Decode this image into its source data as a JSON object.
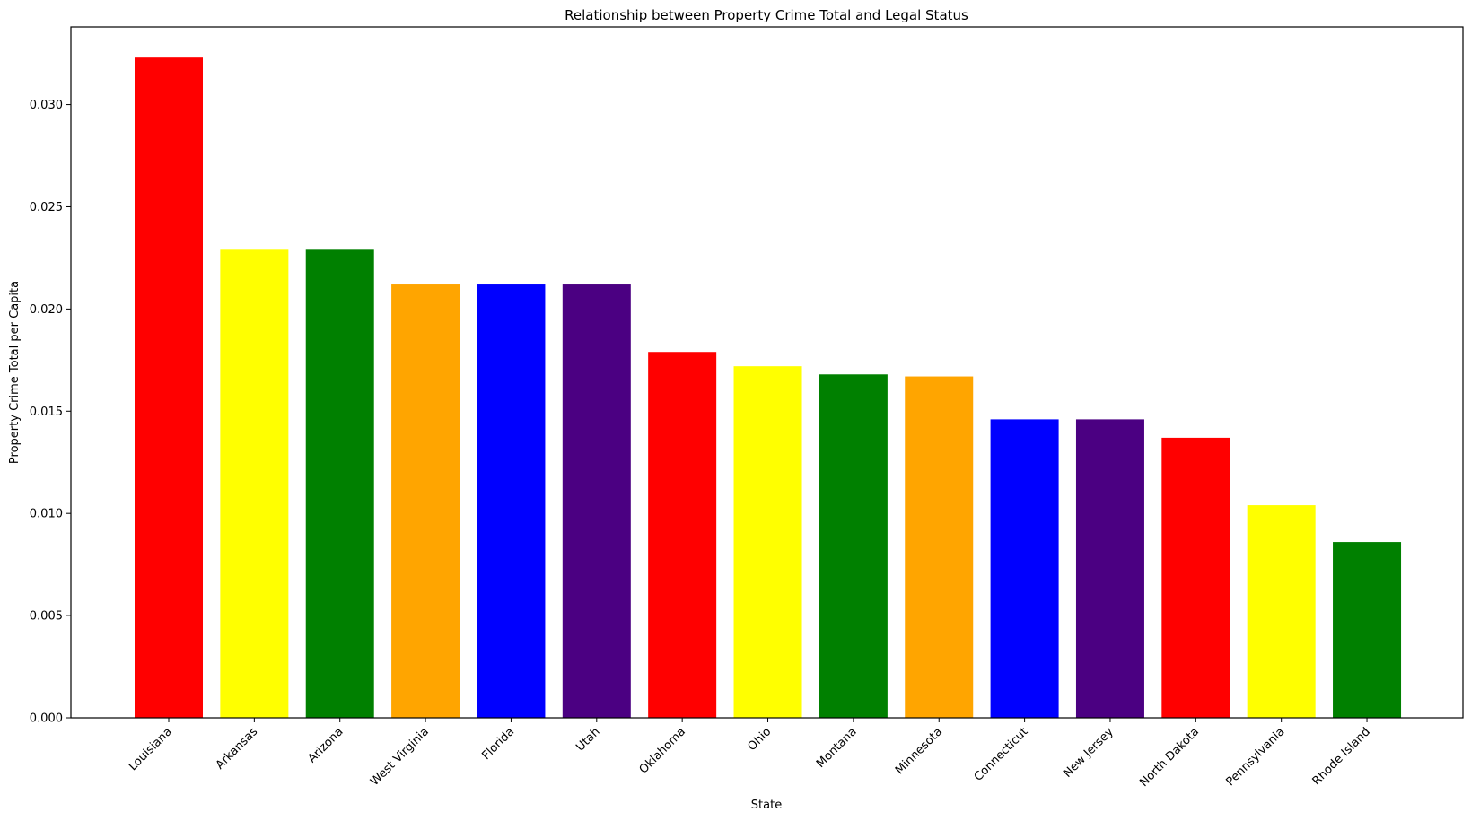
{
  "chart_data": {
    "type": "bar",
    "title": "Relationship between Property Crime Total and Legal Status",
    "xlabel": "State",
    "ylabel": "Property Crime Total per Capita",
    "ylim": [
      0,
      0.0338
    ],
    "yticks": [
      "0.000",
      "0.005",
      "0.010",
      "0.015",
      "0.020",
      "0.025",
      "0.030"
    ],
    "categories": [
      "Louisiana",
      "Arkansas",
      "Arizona",
      "West Virginia",
      "Florida",
      "Utah",
      "Oklahoma",
      "Ohio",
      "Montana",
      "Minnesota",
      "Connecticut",
      "New Jersey",
      "North Dakota",
      "Pennsylvania",
      "Rhode Island"
    ],
    "values": [
      0.0323,
      0.0229,
      0.0229,
      0.0212,
      0.0212,
      0.0212,
      0.0179,
      0.0172,
      0.0168,
      0.0167,
      0.0146,
      0.0146,
      0.0137,
      0.0104,
      0.0086
    ],
    "bar_colors": [
      "#ff0000",
      "#ffff00",
      "#008000",
      "#ffa500",
      "#0000ff",
      "#4b0082",
      "#ff0000",
      "#ffff00",
      "#008000",
      "#ffa500",
      "#0000ff",
      "#4b0082",
      "#ff0000",
      "#ffff00",
      "#008000"
    ],
    "grid": false,
    "legend": "none"
  }
}
